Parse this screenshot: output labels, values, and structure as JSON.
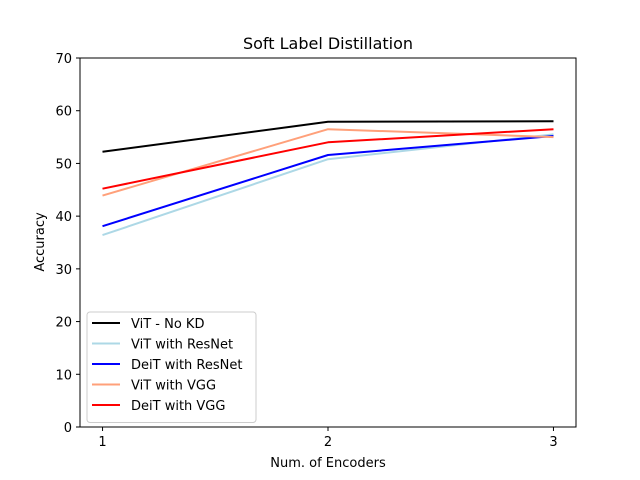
{
  "chart_data": {
    "type": "line",
    "title": "Soft Label Distillation",
    "xlabel": "Num. of Encoders",
    "ylabel": "Accuracy",
    "x": [
      1,
      2,
      3
    ],
    "xticks": [
      "1",
      "2",
      "3"
    ],
    "yticks": [
      "0",
      "10",
      "20",
      "30",
      "40",
      "50",
      "60",
      "70"
    ],
    "xlim": [
      0.9,
      3.1
    ],
    "ylim": [
      0,
      70
    ],
    "legend_position": "lower-left",
    "grid": false,
    "series": [
      {
        "name": "ViT - No KD",
        "color": "#000000",
        "values": [
          52.2,
          57.9,
          58.0
        ]
      },
      {
        "name": "ViT with ResNet",
        "color": "#add8e6",
        "values": [
          36.4,
          50.8,
          55.5
        ]
      },
      {
        "name": "DeiT with ResNet",
        "color": "#0000ff",
        "values": [
          38.1,
          51.6,
          55.2
        ]
      },
      {
        "name": "ViT with VGG",
        "color": "#ffa07a",
        "values": [
          43.9,
          56.5,
          55.0
        ]
      },
      {
        "name": "DeiT with VGG",
        "color": "#ff0000",
        "values": [
          45.2,
          54.0,
          56.5
        ]
      }
    ]
  }
}
